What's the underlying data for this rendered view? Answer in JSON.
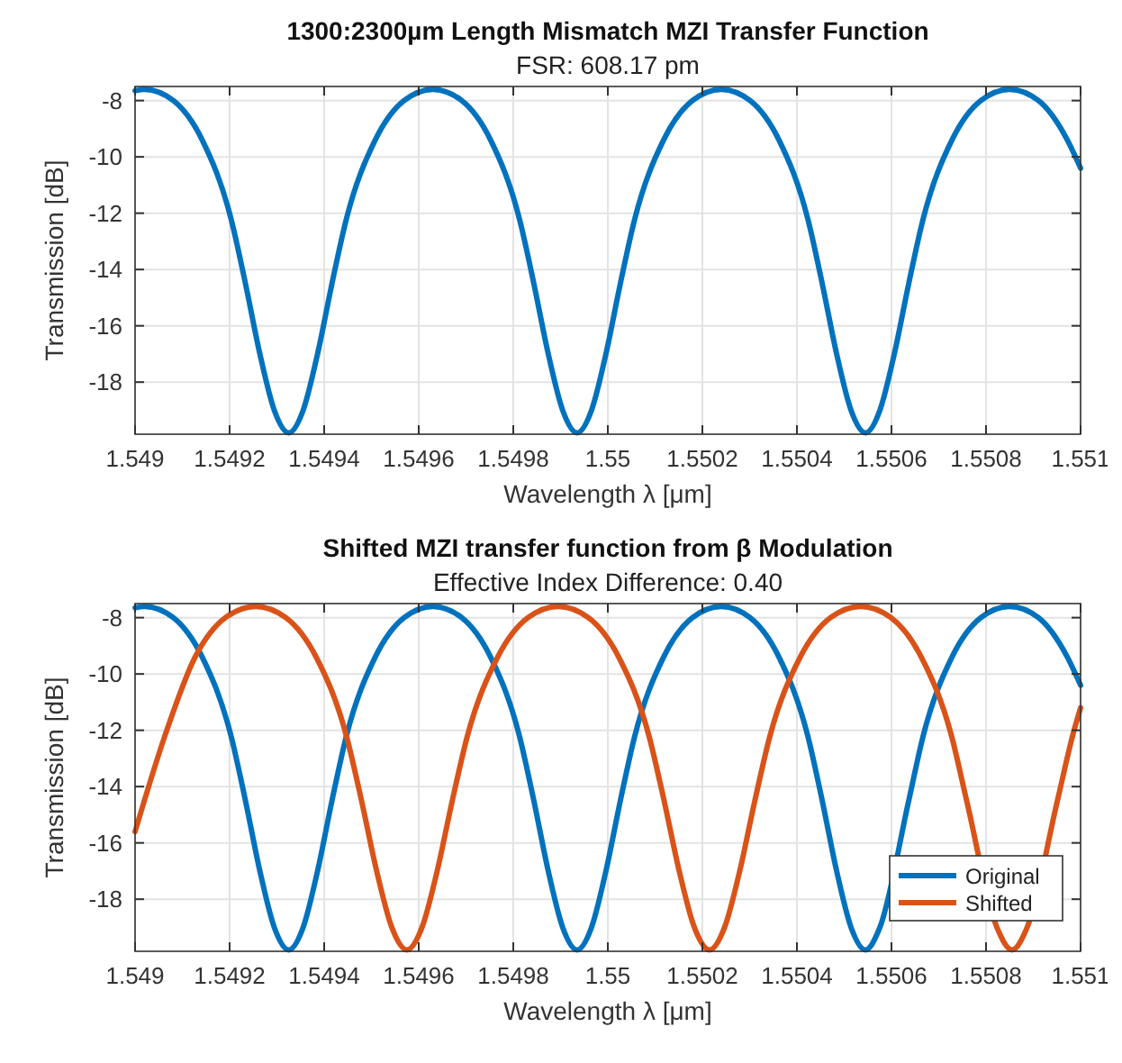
{
  "chart_data": [
    {
      "type": "line",
      "title": "1300:2300µm Length Mismatch MZI Transfer Function",
      "subtitle": "FSR: 608.17 pm",
      "xlabel": "Wavelength λ [μm]",
      "ylabel": "Transmission [dB]",
      "xlim": [
        1.549,
        1.551
      ],
      "ylim": [
        -19.85,
        -7.5
      ],
      "xticks": [
        1.549,
        1.5492,
        1.5494,
        1.5496,
        1.5498,
        1.55,
        1.5502,
        1.5504,
        1.5506,
        1.5508,
        1.551
      ],
      "yticks": [
        -18,
        -16,
        -14,
        -12,
        -10,
        -8
      ],
      "grid": true,
      "legend": false,
      "series": [
        {
          "color": "#0072bd",
          "x": [
            1.549,
            1.54902,
            1.549081,
            1.549142,
            1.549203,
            1.5492335,
            1.549264,
            1.5492945,
            1.549325,
            1.5493555,
            1.549386,
            1.5494165,
            1.549447,
            1.549508,
            1.549569,
            1.54963,
            1.549691,
            1.549752,
            1.549813,
            1.5498435,
            1.549874,
            1.5499045,
            1.549935,
            1.5499655,
            1.549996,
            1.5500265,
            1.550057,
            1.550118,
            1.550179,
            1.55024,
            1.550301,
            1.550362,
            1.550423,
            1.5504535,
            1.550484,
            1.5505145,
            1.550545,
            1.5505755,
            1.550606,
            1.5506365,
            1.550667,
            1.550728,
            1.550789,
            1.55085,
            1.550911,
            1.550972,
            1.551
          ],
          "values": [
            -7.65,
            -7.6,
            -8.0,
            -9.4,
            -12.2,
            -14.5,
            -17.0,
            -19.0,
            -19.8,
            -19.0,
            -17.0,
            -14.5,
            -12.2,
            -9.4,
            -8.0,
            -7.6,
            -8.0,
            -9.4,
            -12.2,
            -14.5,
            -17.0,
            -19.0,
            -19.8,
            -19.0,
            -17.0,
            -14.5,
            -12.2,
            -9.4,
            -8.0,
            -7.6,
            -8.0,
            -9.4,
            -12.2,
            -14.5,
            -17.0,
            -19.0,
            -19.8,
            -19.0,
            -17.0,
            -14.5,
            -12.2,
            -9.4,
            -8.0,
            -7.6,
            -8.0,
            -9.4,
            -10.4
          ]
        }
      ]
    },
    {
      "type": "line",
      "title": "Shifted MZI transfer function from β Modulation",
      "subtitle": "Effective Index Difference: 0.40",
      "xlabel": "Wavelength λ [μm]",
      "ylabel": "Transmission [dB]",
      "xlim": [
        1.549,
        1.551
      ],
      "ylim": [
        -19.85,
        -7.5
      ],
      "xticks": [
        1.549,
        1.5492,
        1.5494,
        1.5496,
        1.5498,
        1.55,
        1.5502,
        1.5504,
        1.5506,
        1.5508,
        1.551
      ],
      "yticks": [
        -18,
        -16,
        -14,
        -12,
        -10,
        -8
      ],
      "grid": true,
      "legend": "bottom right",
      "series": [
        {
          "name": "Original",
          "color": "#0072bd",
          "x": [
            1.549,
            1.54902,
            1.549081,
            1.549142,
            1.549203,
            1.5492335,
            1.549264,
            1.5492945,
            1.549325,
            1.5493555,
            1.549386,
            1.5494165,
            1.549447,
            1.549508,
            1.549569,
            1.54963,
            1.549691,
            1.549752,
            1.549813,
            1.5498435,
            1.549874,
            1.5499045,
            1.549935,
            1.5499655,
            1.549996,
            1.5500265,
            1.550057,
            1.550118,
            1.550179,
            1.55024,
            1.550301,
            1.550362,
            1.550423,
            1.5504535,
            1.550484,
            1.5505145,
            1.550545,
            1.5505755,
            1.550606,
            1.5506365,
            1.550667,
            1.550728,
            1.550789,
            1.55085,
            1.550911,
            1.550972,
            1.551
          ],
          "values": [
            -7.65,
            -7.6,
            -8.0,
            -9.4,
            -12.2,
            -14.5,
            -17.0,
            -19.0,
            -19.8,
            -19.0,
            -17.0,
            -14.5,
            -12.2,
            -9.4,
            -8.0,
            -7.6,
            -8.0,
            -9.4,
            -12.2,
            -14.5,
            -17.0,
            -19.0,
            -19.8,
            -19.0,
            -17.0,
            -14.5,
            -12.2,
            -9.4,
            -8.0,
            -7.6,
            -8.0,
            -9.4,
            -12.2,
            -14.5,
            -17.0,
            -19.0,
            -19.8,
            -19.0,
            null,
            -14.5,
            -12.2,
            -9.4,
            -8.0,
            -7.6,
            -8.0,
            -9.4,
            -10.4
          ]
        },
        {
          "name": "Shifted",
          "color": "#d95319",
          "x": [
            1.549,
            1.549063,
            1.549127,
            1.549191,
            1.549255,
            1.549319,
            1.549383,
            1.549447,
            1.549479,
            1.549511,
            1.549543,
            1.549575,
            1.549607,
            1.549639,
            1.549671,
            1.549703,
            1.549767,
            1.549831,
            1.549895,
            1.549959,
            1.550023,
            1.550087,
            1.550119,
            1.550151,
            1.550183,
            1.550215,
            1.550247,
            1.550279,
            1.550311,
            1.550343,
            1.550407,
            1.550471,
            1.550535,
            1.550599,
            1.550663,
            1.550727,
            1.550759,
            1.550791,
            1.550823,
            1.550855,
            1.550887,
            1.550919,
            1.550951,
            1.550983,
            1.551
          ],
          "values": [
            -15.6,
            -12.2,
            -9.4,
            -8.0,
            -7.6,
            -8.0,
            -9.4,
            -12.2,
            -14.5,
            -17.0,
            -19.0,
            -19.8,
            -19.0,
            -17.0,
            -14.5,
            -12.2,
            -9.4,
            -8.0,
            -7.6,
            -8.0,
            -9.4,
            -12.2,
            -14.5,
            -17.0,
            -19.0,
            -19.8,
            -19.0,
            -17.0,
            -14.5,
            -12.2,
            -9.4,
            -8.0,
            -7.6,
            -8.0,
            -9.4,
            -12.2,
            -14.5,
            null,
            -19.0,
            -19.8,
            -19.0,
            null,
            -14.5,
            -12.2,
            -11.2
          ]
        }
      ]
    }
  ]
}
